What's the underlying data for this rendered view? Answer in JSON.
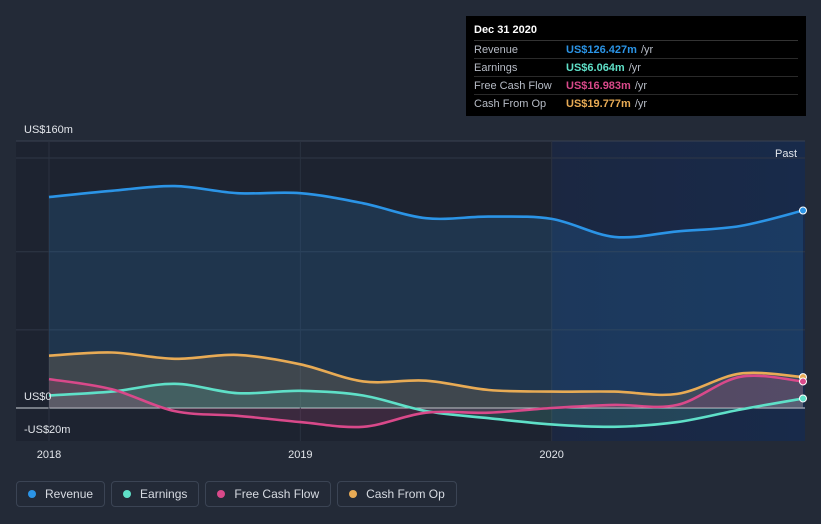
{
  "tooltip": {
    "date": "Dec 31 2020",
    "rows": [
      {
        "label": "Revenue",
        "value": "US$126.427m",
        "unit": "/yr",
        "color": "#2b94e6"
      },
      {
        "label": "Earnings",
        "value": "US$6.064m",
        "unit": "/yr",
        "color": "#5fe0c8"
      },
      {
        "label": "Free Cash Flow",
        "value": "US$16.983m",
        "unit": "/yr",
        "color": "#d9498a"
      },
      {
        "label": "Cash From Op",
        "value": "US$19.777m",
        "unit": "/yr",
        "color": "#e8ab55"
      }
    ]
  },
  "legend": [
    {
      "label": "Revenue",
      "color": "#2b94e6"
    },
    {
      "label": "Earnings",
      "color": "#5fe0c8"
    },
    {
      "label": "Free Cash Flow",
      "color": "#d9498a"
    },
    {
      "label": "Cash From Op",
      "color": "#e8ab55"
    }
  ],
  "chart_data": {
    "type": "area",
    "ylim": [
      -20,
      160
    ],
    "y_tick_labels": [
      {
        "value": 160,
        "label": "US$160m"
      },
      {
        "value": 0,
        "label": "US$0"
      },
      {
        "value": -20,
        "label": "-US$20m"
      }
    ],
    "x_tick_labels": [
      {
        "value": 2018.0,
        "label": "2018"
      },
      {
        "value": 2019.0,
        "label": "2019"
      },
      {
        "value": 2020.0,
        "label": "2020"
      }
    ],
    "xlim": [
      2017.87,
      2021.0
    ],
    "past_label": "Past",
    "past_start": 2020.0,
    "grid": true,
    "series": [
      {
        "name": "Revenue",
        "color": "#2b94e6",
        "points": [
          [
            2018.0,
            135
          ],
          [
            2018.25,
            139
          ],
          [
            2018.5,
            142
          ],
          [
            2018.75,
            137.5
          ],
          [
            2019.0,
            137.5
          ],
          [
            2019.25,
            131
          ],
          [
            2019.5,
            121.5
          ],
          [
            2019.75,
            122.5
          ],
          [
            2020.0,
            121
          ],
          [
            2020.25,
            109.5
          ],
          [
            2020.5,
            113
          ],
          [
            2020.75,
            116.5
          ],
          [
            2021.0,
            126.4
          ]
        ]
      },
      {
        "name": "Cash From Op",
        "color": "#e8ab55",
        "points": [
          [
            2018.0,
            33.5
          ],
          [
            2018.25,
            35.5
          ],
          [
            2018.5,
            31.5
          ],
          [
            2018.75,
            34
          ],
          [
            2019.0,
            28
          ],
          [
            2019.25,
            17
          ],
          [
            2019.5,
            17.5
          ],
          [
            2019.75,
            11.5
          ],
          [
            2020.0,
            10.5
          ],
          [
            2020.25,
            10.5
          ],
          [
            2020.5,
            9
          ],
          [
            2020.75,
            22
          ],
          [
            2021.0,
            19.8
          ]
        ]
      },
      {
        "name": "Earnings",
        "color": "#5fe0c8",
        "points": [
          [
            2018.0,
            8
          ],
          [
            2018.25,
            10.5
          ],
          [
            2018.5,
            15.5
          ],
          [
            2018.75,
            9.5
          ],
          [
            2019.0,
            11
          ],
          [
            2019.25,
            8
          ],
          [
            2019.5,
            -2
          ],
          [
            2019.75,
            -6.5
          ],
          [
            2020.0,
            -10.5
          ],
          [
            2020.25,
            -12
          ],
          [
            2020.5,
            -9
          ],
          [
            2020.75,
            -1
          ],
          [
            2021.0,
            6.1
          ]
        ]
      },
      {
        "name": "Free Cash Flow",
        "color": "#d9498a",
        "points": [
          [
            2018.0,
            18.5
          ],
          [
            2018.25,
            12
          ],
          [
            2018.5,
            -2
          ],
          [
            2018.75,
            -5
          ],
          [
            2019.0,
            -9
          ],
          [
            2019.25,
            -12
          ],
          [
            2019.5,
            -3
          ],
          [
            2019.75,
            -3
          ],
          [
            2020.0,
            0
          ],
          [
            2020.25,
            2
          ],
          [
            2020.5,
            2
          ],
          [
            2020.75,
            20
          ],
          [
            2021.0,
            17
          ]
        ]
      }
    ]
  }
}
